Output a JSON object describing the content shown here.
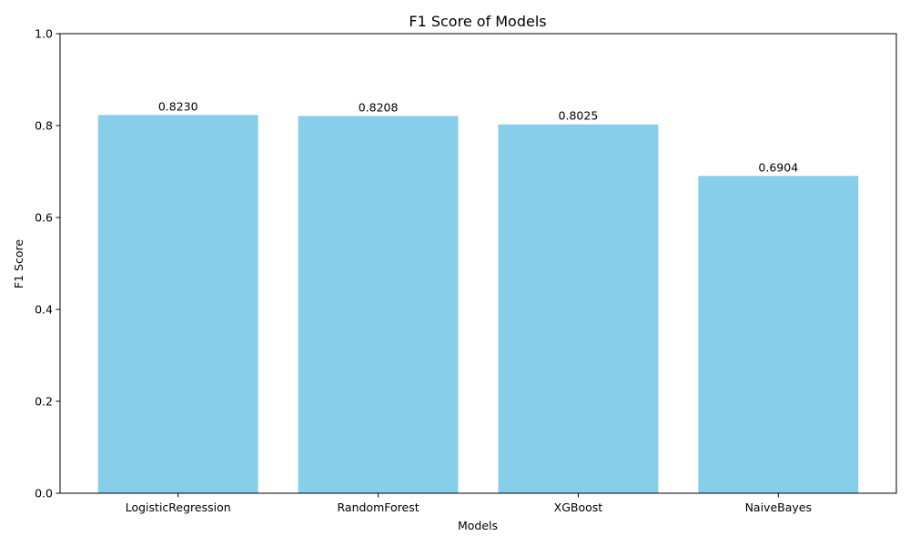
{
  "chart_data": {
    "type": "bar",
    "title": "F1 Score of Models",
    "xlabel": "Models",
    "ylabel": "F1 Score",
    "categories": [
      "LogisticRegression",
      "RandomForest",
      "XGBoost",
      "NaiveBayes"
    ],
    "values": [
      0.823,
      0.8208,
      0.8025,
      0.6904
    ],
    "value_labels": [
      "0.8230",
      "0.8208",
      "0.8025",
      "0.6904"
    ],
    "ylim": [
      0,
      1.0
    ],
    "yticks": [
      0.0,
      0.2,
      0.4,
      0.6,
      0.8,
      1.0
    ],
    "ytick_labels": [
      "0.0",
      "0.2",
      "0.4",
      "0.6",
      "0.8",
      "1.0"
    ],
    "grid": false,
    "legend": "none",
    "bar_color": "#87ceeb"
  }
}
